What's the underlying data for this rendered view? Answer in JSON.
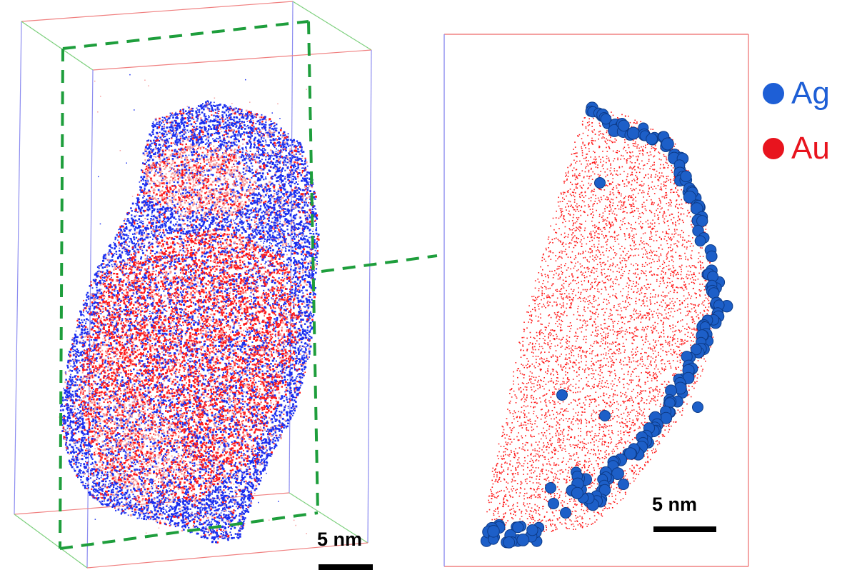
{
  "legend": [
    {
      "label": "Ag",
      "color": "#1e5fd6"
    },
    {
      "label": "Au",
      "color": "#e8141e"
    }
  ],
  "scale_bars": {
    "left": "5 nm",
    "right": "5 nm"
  },
  "colors": {
    "ag_dense": "#1a2ff0",
    "au_dense": "#ff1a1a",
    "au_light": "#f6a0a0",
    "box_red": "#f08080",
    "box_blue": "#8c8cf0",
    "box_green": "#7ed07e",
    "slice_dashed": "#1e9e3c",
    "sphere_fill": "#1d5fc8",
    "sphere_stroke": "#0d3b88"
  }
}
